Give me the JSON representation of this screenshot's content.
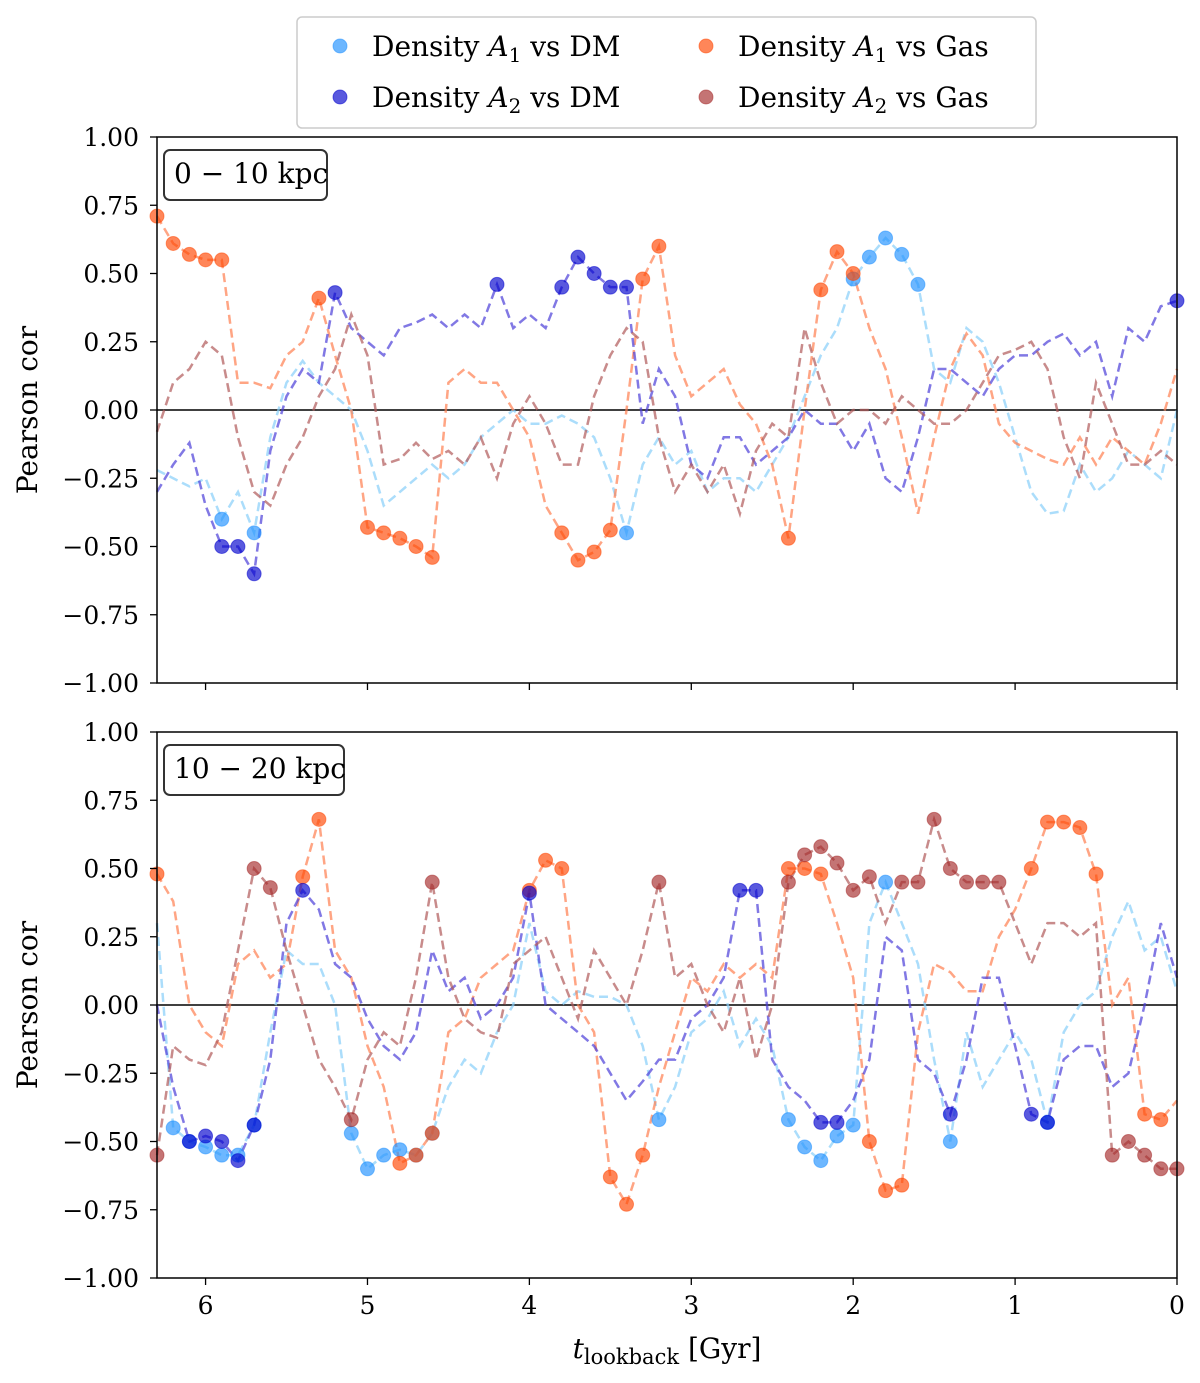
{
  "chart_data": [
    {
      "type": "line",
      "panel_label": "0 − 10 kpc",
      "ylabel": "Pearson cor",
      "ylim": [
        -1.0,
        1.0
      ],
      "xlim": [
        6.3,
        0.0
      ],
      "x_reversed": true,
      "yticks": [
        "1.00",
        "0.75",
        "0.50",
        "0.25",
        "0.00",
        "−0.25",
        "−0.50",
        "−0.75",
        "−1.00"
      ],
      "ytick_values": [
        1.0,
        0.75,
        0.5,
        0.25,
        0.0,
        -0.25,
        -0.5,
        -0.75,
        -1.0
      ],
      "marker_threshold": 0.4,
      "series": [
        {
          "key": "a1_dm",
          "values": [
            -0.22,
            -0.25,
            -0.28,
            -0.25,
            -0.4,
            -0.3,
            -0.45,
            -0.1,
            0.1,
            0.18,
            0.1,
            0.05,
            0.0,
            -0.15,
            -0.35,
            -0.3,
            -0.25,
            -0.2,
            -0.25,
            -0.2,
            -0.1,
            -0.05,
            0.0,
            -0.05,
            -0.05,
            -0.02,
            -0.05,
            -0.1,
            -0.25,
            -0.45,
            -0.2,
            -0.1,
            -0.2,
            -0.15,
            -0.3,
            -0.25,
            -0.25,
            -0.3,
            -0.2,
            -0.1,
            0.05,
            0.2,
            0.3,
            0.48,
            0.56,
            0.63,
            0.57,
            0.46,
            0.15,
            0.1,
            0.3,
            0.25,
            0.1,
            -0.1,
            -0.3,
            -0.38,
            -0.37,
            -0.2,
            -0.3,
            -0.25,
            -0.15,
            -0.2,
            -0.25,
            0.0
          ]
        },
        {
          "key": "a1_gas",
          "values": [
            0.71,
            0.61,
            0.57,
            0.55,
            0.55,
            0.1,
            0.1,
            0.08,
            0.2,
            0.25,
            0.41,
            0.2,
            0.0,
            -0.43,
            -0.45,
            -0.47,
            -0.5,
            -0.54,
            0.1,
            0.15,
            0.1,
            0.1,
            0.0,
            -0.1,
            -0.35,
            -0.45,
            -0.55,
            -0.52,
            -0.44,
            0.0,
            0.48,
            0.6,
            0.2,
            0.05,
            0.1,
            0.15,
            0.02,
            -0.05,
            -0.2,
            -0.47,
            0.0,
            0.44,
            0.58,
            0.5,
            0.3,
            0.15,
            -0.1,
            -0.38,
            -0.1,
            0.15,
            0.28,
            0.2,
            -0.05,
            -0.12,
            -0.15,
            -0.18,
            -0.2,
            -0.1,
            -0.2,
            -0.1,
            -0.15,
            -0.2,
            -0.05,
            0.15
          ]
        },
        {
          "key": "a2_dm",
          "values": [
            -0.3,
            -0.2,
            -0.12,
            -0.35,
            -0.5,
            -0.5,
            -0.6,
            -0.15,
            0.05,
            0.15,
            0.1,
            0.43,
            0.3,
            0.25,
            0.2,
            0.3,
            0.32,
            0.35,
            0.3,
            0.35,
            0.3,
            0.46,
            0.3,
            0.35,
            0.3,
            0.45,
            0.56,
            0.5,
            0.45,
            0.45,
            -0.05,
            0.15,
            0.05,
            -0.2,
            -0.25,
            -0.1,
            -0.1,
            -0.2,
            -0.15,
            -0.1,
            0.0,
            -0.05,
            -0.05,
            -0.15,
            -0.05,
            -0.25,
            -0.3,
            -0.1,
            0.15,
            0.15,
            0.1,
            0.05,
            0.15,
            0.2,
            0.2,
            0.25,
            0.28,
            0.2,
            0.25,
            0.05,
            0.3,
            0.25,
            0.38,
            0.4
          ]
        },
        {
          "key": "a2_gas",
          "values": [
            -0.08,
            0.1,
            0.15,
            0.25,
            0.2,
            -0.1,
            -0.3,
            -0.35,
            -0.2,
            -0.1,
            0.05,
            0.15,
            0.35,
            0.2,
            -0.2,
            -0.18,
            -0.12,
            -0.18,
            -0.15,
            -0.2,
            -0.1,
            -0.25,
            -0.05,
            0.05,
            -0.05,
            -0.2,
            -0.2,
            0.05,
            0.2,
            0.3,
            0.25,
            -0.1,
            -0.3,
            -0.2,
            -0.3,
            -0.2,
            -0.38,
            -0.15,
            -0.05,
            -0.1,
            0.3,
            0.1,
            -0.05,
            0.0,
            0.0,
            -0.05,
            0.05,
            0.0,
            -0.05,
            -0.05,
            0.0,
            0.1,
            0.2,
            0.22,
            0.25,
            0.15,
            -0.1,
            -0.25,
            0.1,
            -0.05,
            -0.2,
            -0.2,
            -0.15,
            -0.2
          ]
        }
      ]
    },
    {
      "type": "line",
      "panel_label": "10 − 20 kpc",
      "ylabel": "Pearson cor",
      "xlabel": "t_lookback [Gyr]",
      "ylim": [
        -1.0,
        1.0
      ],
      "xlim": [
        6.3,
        0.0
      ],
      "x_reversed": true,
      "xticks": [
        "6",
        "5",
        "4",
        "3",
        "2",
        "1",
        "0"
      ],
      "xtick_values": [
        6,
        5,
        4,
        3,
        2,
        1,
        0
      ],
      "yticks": [
        "1.00",
        "0.75",
        "0.50",
        "0.25",
        "0.00",
        "−0.25",
        "−0.50",
        "−0.75",
        "−1.00"
      ],
      "ytick_values": [
        1.0,
        0.75,
        0.5,
        0.25,
        0.0,
        -0.25,
        -0.5,
        -0.75,
        -1.0
      ],
      "marker_threshold": 0.4,
      "series": [
        {
          "key": "a1_dm",
          "values": [
            0.3,
            -0.45,
            -0.5,
            -0.52,
            -0.55,
            -0.55,
            -0.44,
            -0.1,
            0.2,
            0.15,
            0.15,
            0.0,
            -0.47,
            -0.6,
            -0.55,
            -0.53,
            -0.55,
            -0.47,
            -0.3,
            -0.2,
            -0.25,
            -0.1,
            0.0,
            0.3,
            0.05,
            0.0,
            0.05,
            0.03,
            0.03,
            0.0,
            -0.15,
            -0.42,
            -0.3,
            -0.1,
            -0.05,
            0.05,
            -0.15,
            -0.05,
            -0.15,
            -0.42,
            -0.52,
            -0.57,
            -0.48,
            -0.44,
            0.3,
            0.45,
            0.3,
            0.15,
            -0.2,
            -0.5,
            -0.1,
            -0.3,
            -0.2,
            -0.1,
            -0.2,
            -0.43,
            -0.1,
            0.0,
            0.05,
            0.25,
            0.38,
            0.2,
            0.25,
            0.05
          ]
        },
        {
          "key": "a1_gas",
          "values": [
            0.48,
            0.38,
            0.0,
            -0.1,
            -0.15,
            0.15,
            0.2,
            0.1,
            0.15,
            0.47,
            0.68,
            0.2,
            0.1,
            -0.15,
            -0.3,
            -0.58,
            -0.55,
            -0.47,
            -0.1,
            -0.05,
            0.1,
            0.15,
            0.2,
            0.42,
            0.53,
            0.5,
            0.0,
            -0.1,
            -0.63,
            -0.73,
            -0.55,
            -0.3,
            -0.1,
            0.1,
            0.05,
            0.15,
            0.1,
            0.15,
            0.1,
            0.5,
            0.5,
            0.48,
            0.3,
            0.1,
            -0.5,
            -0.68,
            -0.66,
            -0.1,
            0.15,
            0.12,
            0.05,
            0.05,
            0.25,
            0.35,
            0.5,
            0.67,
            0.67,
            0.65,
            0.48,
            0.0,
            0.1,
            -0.4,
            -0.42,
            -0.35
          ]
        },
        {
          "key": "a2_dm",
          "values": [
            0.0,
            -0.3,
            -0.5,
            -0.48,
            -0.5,
            -0.57,
            -0.44,
            -0.2,
            0.3,
            0.42,
            0.35,
            0.15,
            0.1,
            -0.05,
            -0.15,
            -0.2,
            -0.1,
            0.2,
            0.05,
            0.1,
            -0.05,
            0.0,
            0.1,
            0.41,
            0.0,
            -0.05,
            -0.1,
            -0.15,
            -0.25,
            -0.35,
            -0.28,
            -0.2,
            -0.2,
            -0.05,
            0.0,
            0.1,
            0.42,
            0.42,
            -0.2,
            -0.3,
            -0.35,
            -0.43,
            -0.43,
            -0.35,
            -0.2,
            0.25,
            0.2,
            -0.2,
            -0.25,
            -0.4,
            -0.2,
            0.1,
            0.1,
            -0.15,
            -0.4,
            -0.43,
            -0.2,
            -0.15,
            -0.15,
            -0.3,
            -0.25,
            0.0,
            0.3,
            0.1
          ]
        },
        {
          "key": "a2_gas",
          "values": [
            -0.55,
            -0.15,
            -0.2,
            -0.22,
            -0.1,
            0.2,
            0.5,
            0.43,
            0.2,
            0.0,
            -0.2,
            -0.3,
            -0.42,
            -0.2,
            -0.1,
            -0.15,
            0.1,
            0.45,
            0.1,
            -0.05,
            -0.1,
            -0.12,
            0.15,
            0.2,
            0.25,
            0.1,
            -0.05,
            0.2,
            0.1,
            0.0,
            0.2,
            0.45,
            0.1,
            0.15,
            0.0,
            -0.1,
            0.1,
            -0.2,
            0.0,
            0.45,
            0.55,
            0.58,
            0.52,
            0.42,
            0.47,
            0.3,
            0.45,
            0.45,
            0.68,
            0.5,
            0.45,
            0.45,
            0.45,
            0.3,
            0.15,
            0.3,
            0.3,
            0.25,
            0.3,
            -0.55,
            -0.5,
            -0.55,
            -0.6,
            -0.6
          ]
        }
      ]
    }
  ],
  "x_values": [
    6.3,
    6.2,
    6.1,
    6.0,
    5.9,
    5.8,
    5.7,
    5.6,
    5.5,
    5.4,
    5.3,
    5.2,
    5.1,
    5.0,
    4.9,
    4.8,
    4.7,
    4.6,
    4.5,
    4.4,
    4.3,
    4.2,
    4.1,
    4.0,
    3.9,
    3.8,
    3.7,
    3.6,
    3.5,
    3.4,
    3.3,
    3.2,
    3.1,
    3.0,
    2.9,
    2.8,
    2.7,
    2.6,
    2.5,
    2.4,
    2.3,
    2.2,
    2.1,
    2.0,
    1.9,
    1.8,
    1.7,
    1.6,
    1.5,
    1.4,
    1.3,
    1.2,
    1.1,
    1.0,
    0.9,
    0.8,
    0.7,
    0.6,
    0.5,
    0.4,
    0.3,
    0.2,
    0.1,
    0.0
  ],
  "legend": {
    "position": "top-center",
    "entries": [
      {
        "key": "a1_dm",
        "prefix": "Density ",
        "sym": "A",
        "sub": "1",
        "suffix": " vs DM",
        "color": "#1e90ff",
        "line_color": "#87cefa"
      },
      {
        "key": "a1_gas",
        "prefix": "Density ",
        "sym": "A",
        "sub": "1",
        "suffix": " vs Gas",
        "color": "#ff4500",
        "line_color": "#ff7f50"
      },
      {
        "key": "a2_dm",
        "prefix": "Density ",
        "sym": "A",
        "sub": "2",
        "suffix": " vs DM",
        "color": "#0000cd",
        "line_color": "#4b3fd8"
      },
      {
        "key": "a2_gas",
        "prefix": "Density ",
        "sym": "A",
        "sub": "2",
        "suffix": " vs Gas",
        "color": "#a52a2a",
        "line_color": "#b05a5a"
      }
    ]
  },
  "xlabel": {
    "main": "t",
    "sub": "lookback",
    "unit": " [Gyr]"
  }
}
